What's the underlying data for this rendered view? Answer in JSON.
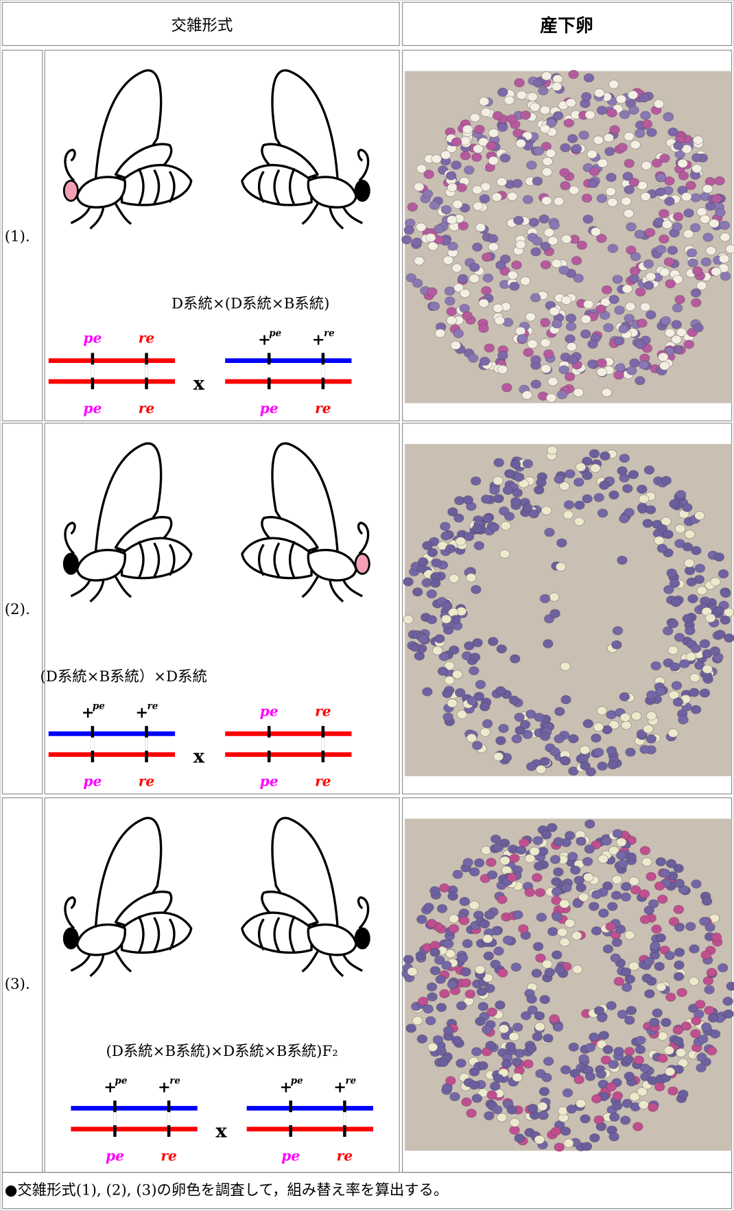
{
  "header": {
    "cross": "交雑形式",
    "eggs": "産下卵"
  },
  "rows": [
    {
      "label": "(1).",
      "cross": "D系統×(D系統×B系統)",
      "left": {
        "top": [
          "pe",
          "re"
        ],
        "bottom": [
          "pe",
          "re"
        ]
      },
      "times": "x",
      "right": {
        "top": [
          {
            "base": "+",
            "sup": "pe"
          },
          {
            "base": "+",
            "sup": "re"
          }
        ],
        "bottom": [
          "pe",
          "re"
        ]
      }
    },
    {
      "label": "(2).",
      "cross": "(D系統×B系統）×D系統",
      "left": {
        "top": [
          {
            "base": "+",
            "sup": "pe"
          },
          {
            "base": "+",
            "sup": "re"
          }
        ],
        "bottom": [
          "pe",
          "re"
        ]
      },
      "times": "x",
      "right": {
        "top": [
          "pe",
          "re"
        ],
        "bottom": [
          "pe",
          "re"
        ]
      }
    },
    {
      "label": "(3).",
      "cross": "(D系統×B系統)×D系統×B系統)F₂",
      "left": {
        "top": [
          {
            "base": "+",
            "sup": "pe"
          },
          {
            "base": "+",
            "sup": "re"
          }
        ],
        "bottom": [
          "pe",
          "re"
        ]
      },
      "times": "x",
      "right": {
        "top": [
          {
            "base": "+",
            "sup": "pe"
          },
          {
            "base": "+",
            "sup": "re"
          }
        ],
        "bottom": [
          "pe",
          "re"
        ]
      }
    }
  ],
  "footer": "●交雑形式(1), (2), (3)の卵色を調査して，組み替え率を算出する。"
}
